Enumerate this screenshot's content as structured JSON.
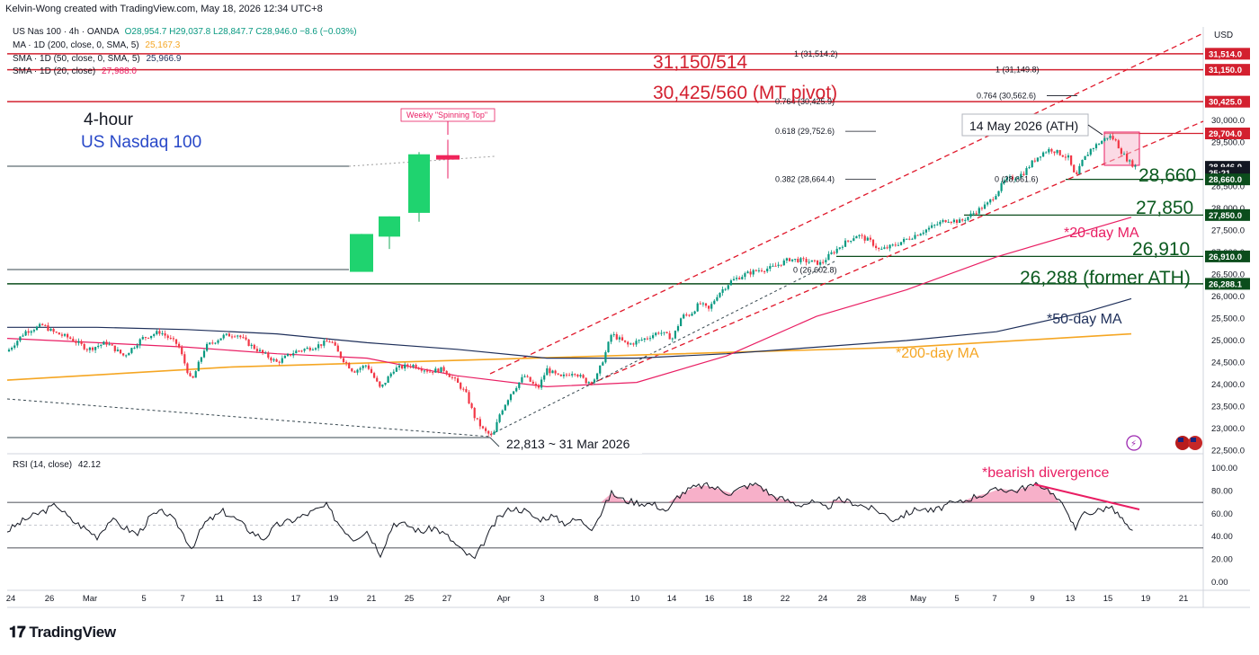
{
  "header": {
    "attribution": "Kelvin-Wong created with TradingView.com, May 18, 2026 12:34 UTC+8"
  },
  "legend": {
    "symbol": "US Nas 100 · 4h · OANDA",
    "ohlc": "O28,954.7  H29,037.8  L28,847.7  C28,946.0  −8.6 (−0.03%)",
    "ma200_label": "MA · 1D (200, close, 0, SMA, 5)",
    "ma200_value": "25,167.3",
    "sma50_label": "SMA · 1D (50, close, 0, SMA, 5)",
    "sma50_value": "25,966.9",
    "sma20_label": "SMA · 1D (20, close)",
    "sma20_value": "27,988.0",
    "rsi_label": "RSI (14, close)",
    "rsi_value": "42.12"
  },
  "colors": {
    "up": "#089981",
    "down": "#f23645",
    "ma20": "#e91e63",
    "ma50": "#1e2f5a",
    "ma200": "#f5a623",
    "resistance": "#d3202f",
    "support": "#0b4d1c",
    "label_red": "#d3202f",
    "label_green": "#0b5a1f",
    "label_blue": "#2848c8",
    "rsi_line": "#131722",
    "divergence": "#e91e63"
  },
  "price_axis": {
    "currency": "USD",
    "ticks": [
      "30,000.0",
      "29,500.0",
      "29,000.0",
      "28,500.0",
      "28,000.0",
      "27,500.0",
      "27,000.0",
      "26,500.0",
      "26,000.0",
      "25,500.0",
      "25,000.0",
      "24,500.0",
      "24,000.0",
      "23,500.0",
      "23,000.0",
      "22,500.0"
    ],
    "price_labels": [
      {
        "text": "31,514.0",
        "kind": "resistance",
        "value": 31514
      },
      {
        "text": "31,150.0",
        "kind": "resistance",
        "value": 31150
      },
      {
        "text": "30,425.0",
        "kind": "resistance",
        "value": 30425
      },
      {
        "text": "29,704.0",
        "kind": "resistance",
        "value": 29704
      },
      {
        "text": "28,946.0",
        "kind": "last",
        "value": 28946
      },
      {
        "text": "25:21",
        "kind": "timer",
        "value": 28810
      },
      {
        "text": "28,660.0",
        "kind": "support",
        "value": 28660
      },
      {
        "text": "27,850.0",
        "kind": "support",
        "value": 27850
      },
      {
        "text": "26,910.0",
        "kind": "support",
        "value": 26910
      },
      {
        "text": "26,288.1",
        "kind": "support",
        "value": 26288
      }
    ]
  },
  "rsi_axis": {
    "ticks": [
      "100.00",
      "80.00",
      "60.00",
      "40.00",
      "20.00",
      "0.00"
    ]
  },
  "time_axis": [
    "24",
    "26",
    "Mar",
    "5",
    "7",
    "11",
    "13",
    "17",
    "19",
    "21",
    "25",
    "27",
    "Apr",
    "3",
    "8",
    "10",
    "14",
    "16",
    "18",
    "22",
    "24",
    "28",
    "May",
    "5",
    "7",
    "9",
    "13",
    "15",
    "19",
    "21"
  ],
  "annotations": {
    "timeframe": "4-hour",
    "instrument": "US Nasdaq 100",
    "r1": "31,150/514",
    "r2": "30,425/560 (MT pivot)",
    "ath": "14 May 2026 (ATH)",
    "s1": "28,660",
    "s2": "27,850",
    "s3": "26,910",
    "s4": "26,288 (former ATH)",
    "ma20": "*20-day MA",
    "ma50": "*50-day MA",
    "ma200": "*200-day MA",
    "low": "22,813 ~ 31 Mar 2026",
    "weekly": "Weekly \"Spinning Top\"",
    "divergence": "*bearish divergence"
  },
  "fib_labels": [
    {
      "text": "1 (31,514.2)",
      "value": 31514
    },
    {
      "text": "1 (31,149.8)",
      "value": 31150
    },
    {
      "text": "0.764 (30,562.6)",
      "value": 30563
    },
    {
      "text": "0.764 (30,425.9)",
      "value": 30426
    },
    {
      "text": "0.618 (29,752.6)",
      "value": 29753
    },
    {
      "text": "0.382 (28,664.4)",
      "value": 28664
    },
    {
      "text": "0 (28,661.6)",
      "value": 28662
    },
    {
      "text": "0 (26,602.8)",
      "value": 26603
    }
  ],
  "branding": {
    "logo_text": "TradingView"
  },
  "chart_data": {
    "type": "candlestick",
    "timeframe": "4h",
    "ylim": [
      22500,
      31700
    ],
    "levels": [
      31514,
      31150,
      30425,
      29704,
      28660,
      27850,
      26910,
      26288
    ],
    "last_price": 28946.0,
    "ath": {
      "date": "14 May 2026"
    },
    "low": {
      "value": 22813,
      "date": "31 Mar 2026"
    },
    "price_path": [
      [
        0,
        24750
      ],
      [
        20,
        25200
      ],
      [
        40,
        25350
      ],
      [
        50,
        25200
      ],
      [
        70,
        25050
      ],
      [
        90,
        24800
      ],
      [
        110,
        24950
      ],
      [
        130,
        24650
      ],
      [
        150,
        25050
      ],
      [
        170,
        25200
      ],
      [
        190,
        24900
      ],
      [
        205,
        24050
      ],
      [
        220,
        24850
      ],
      [
        240,
        25100
      ],
      [
        255,
        25150
      ],
      [
        270,
        24900
      ],
      [
        285,
        24700
      ],
      [
        300,
        24500
      ],
      [
        320,
        24750
      ],
      [
        340,
        24850
      ],
      [
        360,
        25000
      ],
      [
        370,
        24650
      ],
      [
        385,
        24300
      ],
      [
        400,
        24450
      ],
      [
        415,
        23900
      ],
      [
        430,
        24350
      ],
      [
        450,
        24450
      ],
      [
        470,
        24300
      ],
      [
        485,
        24350
      ],
      [
        500,
        24050
      ],
      [
        510,
        23800
      ],
      [
        520,
        23250
      ],
      [
        530,
        22950
      ],
      [
        540,
        22813
      ],
      [
        548,
        23350
      ],
      [
        560,
        23800
      ],
      [
        575,
        24200
      ],
      [
        590,
        23900
      ],
      [
        600,
        24350
      ],
      [
        615,
        24150
      ],
      [
        630,
        24300
      ],
      [
        645,
        24050
      ],
      [
        655,
        24150
      ],
      [
        665,
        24700
      ],
      [
        672,
        25150
      ],
      [
        690,
        24900
      ],
      [
        710,
        25050
      ],
      [
        725,
        25200
      ],
      [
        740,
        25050
      ],
      [
        750,
        25550
      ],
      [
        760,
        25600
      ],
      [
        770,
        25850
      ],
      [
        780,
        25700
      ],
      [
        790,
        26050
      ],
      [
        805,
        26350
      ],
      [
        820,
        26500
      ],
      [
        835,
        26600
      ],
      [
        850,
        26650
      ],
      [
        870,
        26850
      ],
      [
        890,
        26800
      ],
      [
        905,
        26750
      ],
      [
        915,
        26950
      ],
      [
        930,
        27200
      ],
      [
        945,
        27400
      ],
      [
        960,
        27250
      ],
      [
        970,
        27050
      ],
      [
        985,
        27150
      ],
      [
        1000,
        27300
      ],
      [
        1015,
        27450
      ],
      [
        1030,
        27600
      ],
      [
        1045,
        27750
      ],
      [
        1060,
        27700
      ],
      [
        1075,
        27900
      ],
      [
        1090,
        28100
      ],
      [
        1100,
        28350
      ],
      [
        1110,
        28650
      ],
      [
        1120,
        28700
      ],
      [
        1130,
        28800
      ],
      [
        1140,
        29050
      ],
      [
        1150,
        29250
      ],
      [
        1160,
        29350
      ],
      [
        1170,
        29250
      ],
      [
        1180,
        29150
      ],
      [
        1188,
        28680
      ],
      [
        1195,
        29050
      ],
      [
        1205,
        29350
      ],
      [
        1215,
        29500
      ],
      [
        1225,
        29650
      ],
      [
        1232,
        29550
      ],
      [
        1240,
        29250
      ],
      [
        1248,
        29050
      ],
      [
        1255,
        28946
      ]
    ],
    "weekly_candles": [
      {
        "open": 26560,
        "close": 27420,
        "high": 27420,
        "low": 26560
      },
      {
        "open": 27360,
        "close": 27820,
        "high": 27820,
        "low": 27080
      },
      {
        "open": 27900,
        "close": 29230,
        "high": 29280,
        "low": 27700
      },
      {
        "open": 29210,
        "close": 29110,
        "high": 29560,
        "low": 28680
      }
    ],
    "ma20": [
      [
        0,
        25050
      ],
      [
        100,
        24950
      ],
      [
        200,
        24850
      ],
      [
        300,
        24700
      ],
      [
        400,
        24600
      ],
      [
        500,
        24200
      ],
      [
        600,
        23950
      ],
      [
        700,
        24050
      ],
      [
        800,
        24650
      ],
      [
        900,
        25550
      ],
      [
        1000,
        26150
      ],
      [
        1100,
        26900
      ],
      [
        1200,
        27500
      ],
      [
        1250,
        27800
      ]
    ],
    "ma50": [
      [
        0,
        25300
      ],
      [
        100,
        25300
      ],
      [
        200,
        25250
      ],
      [
        300,
        25150
      ],
      [
        400,
        24950
      ],
      [
        500,
        24800
      ],
      [
        600,
        24600
      ],
      [
        700,
        24600
      ],
      [
        800,
        24700
      ],
      [
        900,
        24850
      ],
      [
        1000,
        25000
      ],
      [
        1100,
        25200
      ],
      [
        1200,
        25650
      ],
      [
        1250,
        25950
      ]
    ],
    "ma200": [
      [
        0,
        24100
      ],
      [
        250,
        24400
      ],
      [
        500,
        24550
      ],
      [
        750,
        24700
      ],
      [
        1000,
        24850
      ],
      [
        1250,
        25150
      ]
    ],
    "rsi": [
      [
        0,
        45
      ],
      [
        20,
        55
      ],
      [
        40,
        62
      ],
      [
        55,
        68
      ],
      [
        70,
        55
      ],
      [
        85,
        48
      ],
      [
        100,
        40
      ],
      [
        115,
        55
      ],
      [
        130,
        48
      ],
      [
        145,
        42
      ],
      [
        160,
        58
      ],
      [
        175,
        62
      ],
      [
        190,
        50
      ],
      [
        205,
        30
      ],
      [
        220,
        52
      ],
      [
        240,
        62
      ],
      [
        255,
        55
      ],
      [
        270,
        45
      ],
      [
        285,
        38
      ],
      [
        300,
        50
      ],
      [
        320,
        55
      ],
      [
        340,
        62
      ],
      [
        355,
        67
      ],
      [
        370,
        50
      ],
      [
        385,
        38
      ],
      [
        400,
        45
      ],
      [
        415,
        25
      ],
      [
        430,
        52
      ],
      [
        445,
        50
      ],
      [
        460,
        44
      ],
      [
        475,
        48
      ],
      [
        490,
        40
      ],
      [
        505,
        28
      ],
      [
        520,
        20
      ],
      [
        530,
        35
      ],
      [
        545,
        55
      ],
      [
        560,
        65
      ],
      [
        575,
        63
      ],
      [
        590,
        55
      ],
      [
        605,
        58
      ],
      [
        620,
        52
      ],
      [
        635,
        55
      ],
      [
        650,
        48
      ],
      [
        660,
        60
      ],
      [
        672,
        78
      ],
      [
        685,
        72
      ],
      [
        700,
        70
      ],
      [
        720,
        68
      ],
      [
        735,
        62
      ],
      [
        745,
        75
      ],
      [
        760,
        82
      ],
      [
        775,
        85
      ],
      [
        790,
        82
      ],
      [
        805,
        78
      ],
      [
        820,
        84
      ],
      [
        835,
        86
      ],
      [
        850,
        76
      ],
      [
        865,
        72
      ],
      [
        880,
        68
      ],
      [
        895,
        70
      ],
      [
        910,
        65
      ],
      [
        925,
        72
      ],
      [
        940,
        70
      ],
      [
        955,
        66
      ],
      [
        970,
        62
      ],
      [
        985,
        55
      ],
      [
        1000,
        60
      ],
      [
        1015,
        65
      ],
      [
        1030,
        62
      ],
      [
        1045,
        68
      ],
      [
        1060,
        70
      ],
      [
        1075,
        75
      ],
      [
        1090,
        78
      ],
      [
        1105,
        82
      ],
      [
        1120,
        80
      ],
      [
        1135,
        84
      ],
      [
        1150,
        85
      ],
      [
        1160,
        80
      ],
      [
        1170,
        70
      ],
      [
        1180,
        62
      ],
      [
        1188,
        44
      ],
      [
        1195,
        60
      ],
      [
        1210,
        62
      ],
      [
        1225,
        66
      ],
      [
        1232,
        62
      ],
      [
        1240,
        55
      ],
      [
        1248,
        45
      ],
      [
        1255,
        42
      ]
    ]
  }
}
